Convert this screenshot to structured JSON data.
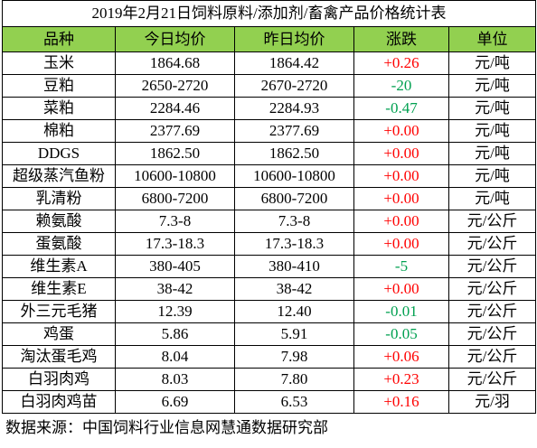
{
  "title": "2019年2月21日饲料原料/添加剂/畜禽产品价格统计表",
  "table": {
    "header": [
      "品种",
      "今日均价",
      "昨日均价",
      "涨跌",
      "单位"
    ],
    "rows": [
      [
        "玉米",
        "1864.68",
        "1864.42",
        "+0.26",
        "元/吨"
      ],
      [
        "豆粕",
        "2650-2720",
        "2670-2720",
        "-20",
        "元/吨"
      ],
      [
        "菜粕",
        "2284.46",
        "2284.93",
        "-0.47",
        "元/吨"
      ],
      [
        "棉粕",
        "2377.69",
        "2377.69",
        "+0.00",
        "元/吨"
      ],
      [
        "DDGS",
        "1862.50",
        "1862.50",
        "+0.00",
        "元/吨"
      ],
      [
        "超级蒸汽鱼粉",
        "10600-10800",
        "10600-10800",
        "+0.00",
        "元/吨"
      ],
      [
        "乳清粉",
        "6800-7200",
        "6800-7200",
        "+0.00",
        "元/吨"
      ],
      [
        "赖氨酸",
        "7.3-8",
        "7.3-8",
        "+0.00",
        "元/公斤"
      ],
      [
        "蛋氨酸",
        "17.3-18.3",
        "17.3-18.3",
        "+0.00",
        "元/公斤"
      ],
      [
        "维生素A",
        "380-405",
        "380-410",
        "-5",
        "元/公斤"
      ],
      [
        "维生素E",
        "38-42",
        "38-42",
        "+0.00",
        "元/公斤"
      ],
      [
        "外三元毛猪",
        "12.39",
        "12.40",
        "-0.01",
        "元/公斤"
      ],
      [
        "鸡蛋",
        "5.86",
        "5.91",
        "-0.05",
        "元/公斤"
      ],
      [
        "淘汰蛋毛鸡",
        "8.04",
        "7.98",
        "+0.06",
        "元/公斤"
      ],
      [
        "白羽肉鸡",
        "8.03",
        "7.80",
        "+0.23",
        "元/公斤"
      ],
      [
        "白羽肉鸡苗",
        "6.69",
        "6.53",
        "+0.16",
        "元/羽"
      ]
    ]
  },
  "footer": "数据来源：中国饲料行业信息网慧通数据研究部"
}
